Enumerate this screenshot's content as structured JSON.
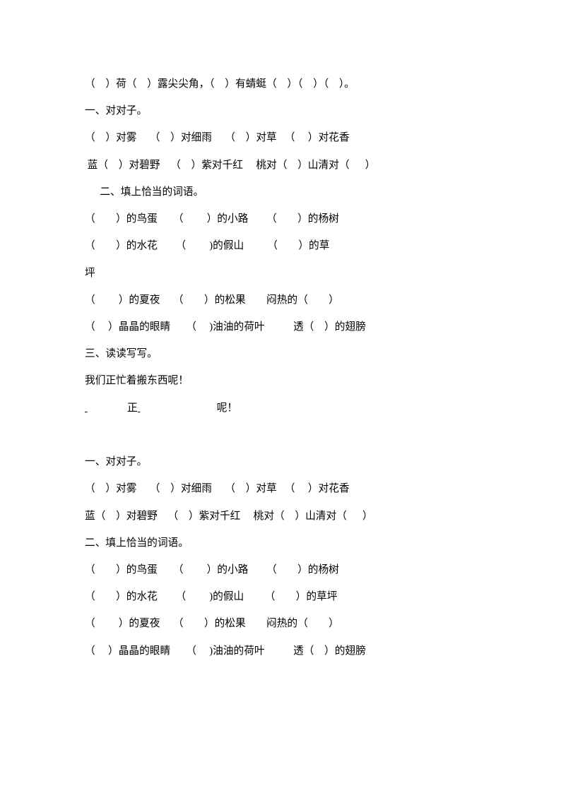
{
  "font": {
    "family": "SimSun",
    "size_pt": 11,
    "color": "#000000"
  },
  "background_color": "#ffffff",
  "line_height": 2.6,
  "lines": [
    {
      "text": "（    ）荷（    ）露尖尖角，（    ）有蜻蜓（    ）（    ）（    ）。"
    },
    {
      "text": "一、对对子。"
    },
    {
      "text": "（    ）对雾     （    ）对细雨     （    ）对草   （     ）对花香"
    },
    {
      "text": " 蓝（    ）对碧野    （    ）紫对千红     桃对（    ）山清对（      ）"
    },
    {
      "text": "  二、填上恰当的词语。",
      "indent": true
    },
    {
      "text": "（        ）的鸟蛋      （         ）的小路       （        ）的杨树"
    },
    {
      "text": "（        ）的水花       （         )的假山         （        ）的草"
    },
    {
      "text": "坪"
    },
    {
      "text": "（         ）的夏夜     （        ）的松果        闷热的（        ）"
    },
    {
      "text": "（     ）晶晶的眼睛      （     )油油的荷叶           透（    ）的翅膀"
    },
    {
      "text": "三、读读写写。"
    },
    {
      "text": "我们正忙着搬东西呢！"
    },
    {
      "type": "composite",
      "parts": [
        {
          "kind": "underline",
          "width": 60
        },
        {
          "kind": "text",
          "value": "正"
        },
        {
          "kind": "underline",
          "width": 112
        },
        {
          "kind": "text",
          "value": "呢！"
        }
      ]
    },
    {
      "text": ""
    },
    {
      "text": "一、对对子。"
    },
    {
      "text": "（    ）对雾     （    ）对细雨     （    ）对草   （     ）对花香"
    },
    {
      "text": "蓝（    ）对碧野    （    ）紫对千红     桃对（    ）山清对（      ）"
    },
    {
      "text": "二、填上恰当的词语。"
    },
    {
      "text": "（        ）的鸟蛋      （         ）的小路       （        ）的杨树"
    },
    {
      "text": "（        ）的水花       （         )的假山        （        ）的草坪"
    },
    {
      "text": "（         ）的夏夜     （        ）的松果        闷热的（        ）"
    },
    {
      "text": "（     ）晶晶的眼睛      （     )油油的荷叶           透（    ）的翅膀"
    }
  ]
}
